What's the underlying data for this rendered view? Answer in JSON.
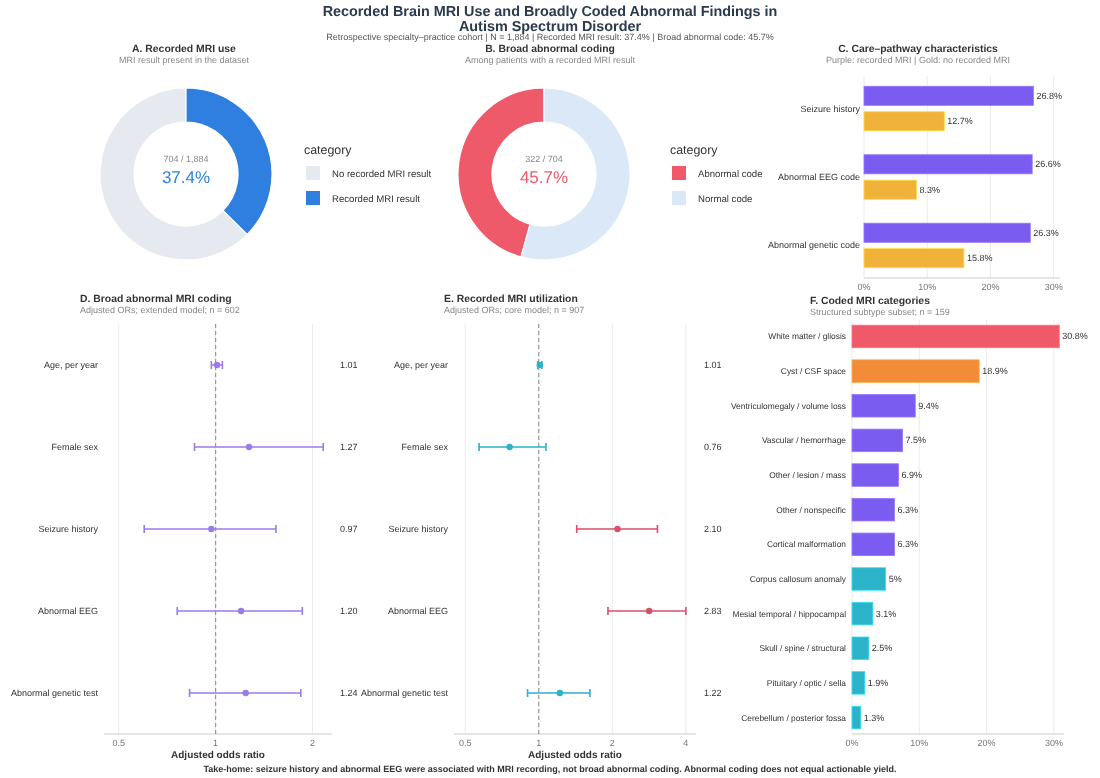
{
  "chart_data": [
    {
      "type": "other",
      "title": "Recorded Brain MRI Use and Broadly Coded Abnormal Findings in Autism Spectrum Disorder",
      "subtitle": "Retrospective specialty–practice cohort | N = 1,884 | Recorded MRI result: 37.4% | Broad abnormal code: 45.7%",
      "annotations": [
        "Take-home: seizure history and abnormal EEG were associated with MRI recording, not broad abnormal coding. Abnormal coding does not equal actionable yield."
      ]
    },
    {
      "type": "donut",
      "title": "A. Recorded MRI use",
      "subtitle": "MRI result present in the dataset",
      "categories": [
        "No recorded MRI result",
        "Recorded MRI result"
      ],
      "values": [
        62.6,
        37.4
      ],
      "colors": [
        "#e6e9f0",
        "#2f7fe0"
      ],
      "legend": "right",
      "legend_title": "category",
      "annotations": [
        "704 / 1,884",
        "37.4%"
      ]
    },
    {
      "type": "donut",
      "title": "B. Broad abnormal coding",
      "subtitle": "Among patients with a recorded MRI result",
      "categories": [
        "Abnormal code",
        "Normal code"
      ],
      "values": [
        45.7,
        54.3
      ],
      "colors": [
        "#ef5a6a",
        "#dbe8f7"
      ],
      "legend": "right",
      "legend_title": "category",
      "annotations": [
        "322 / 704",
        "45.7%"
      ]
    },
    {
      "type": "bar",
      "orientation": "horizontal",
      "title": "C. Care–pathway characteristics",
      "subtitle": "Purple: recorded MRI | Gold: no recorded MRI",
      "categories": [
        "Seizure history",
        "Abnormal EEG code",
        "Abnormal genetic code"
      ],
      "series": [
        {
          "color": "#7b5cf0",
          "values": [
            26.8,
            26.6,
            26.3
          ],
          "value_labels": [
            "26.8%",
            "26.6%",
            "26.3%"
          ]
        },
        {
          "color": "#f0b23a",
          "values": [
            12.7,
            8.3,
            15.8
          ],
          "value_labels": [
            "12.7%",
            "8.3%",
            "15.8%"
          ]
        }
      ],
      "xlim": [
        0,
        31
      ],
      "xticks": [
        {
          "value": 0,
          "label": "0%"
        },
        {
          "value": 10,
          "label": "10%"
        },
        {
          "value": 20,
          "label": "20%"
        },
        {
          "value": 30,
          "label": "30%"
        }
      ],
      "grid": "x"
    },
    {
      "type": "scatter",
      "orientation": "horizontal",
      "title": "D. Broad abnormal MRI coding",
      "subtitle": "Adjusted ORs; extended model; n = 602",
      "xlabel": "Adjusted odds ratio",
      "categories": [
        "Age, per year",
        "Female sex",
        "Seizure history",
        "Abnormal EEG",
        "Abnormal genetic test"
      ],
      "values": [
        1.01,
        1.27,
        0.97,
        1.2,
        1.24
      ],
      "errors": [
        [
          0.97,
          1.05
        ],
        [
          0.86,
          2.16
        ],
        [
          0.6,
          1.54
        ],
        [
          0.76,
          1.86
        ],
        [
          0.83,
          1.84
        ]
      ],
      "color": "#9b7be8",
      "value_labels": [
        "1.01",
        "1.27",
        "0.97",
        "1.20",
        "1.24"
      ],
      "log": "x",
      "xlim": [
        0.45,
        2.3
      ],
      "xticks": [
        0.5,
        1,
        2
      ],
      "ref_lines": [
        {
          "axis": "x",
          "value": 1,
          "line_style": "dashed",
          "color": "#999999"
        }
      ],
      "grid": "x",
      "marker": "circle"
    },
    {
      "type": "scatter",
      "orientation": "horizontal",
      "title": "E. Recorded MRI utilization",
      "subtitle": "Adjusted ORs; core model; n = 907",
      "xlabel": "Adjusted odds ratio",
      "categories": [
        "Age, per year",
        "Female sex",
        "Seizure history",
        "Abnormal EEG",
        "Abnormal genetic test"
      ],
      "values": [
        1.01,
        0.76,
        2.1,
        2.83,
        1.22
      ],
      "errors": [
        [
          0.99,
          1.03
        ],
        [
          0.57,
          1.07
        ],
        [
          1.43,
          3.06
        ],
        [
          1.92,
          4.0
        ],
        [
          0.9,
          1.62
        ]
      ],
      "colors": [
        "#2bb3c9",
        "#2bb3c9",
        "#d9506a",
        "#d9506a",
        "#2bb3c9"
      ],
      "value_labels": [
        "1.01",
        "0.76",
        "2.10",
        "2.83",
        "1.22"
      ],
      "log": "x",
      "xlim": [
        0.45,
        4.4
      ],
      "xticks": [
        0.5,
        1,
        2,
        4
      ],
      "ref_lines": [
        {
          "axis": "x",
          "value": 1,
          "line_style": "dashed",
          "color": "#999999"
        }
      ],
      "grid": "x",
      "marker": "circle"
    },
    {
      "type": "bar",
      "orientation": "horizontal",
      "title": "F. Coded MRI categories",
      "subtitle": "Structured subtype subset; n = 159",
      "categories": [
        "White matter / gliosis",
        "Cyst / CSF space",
        "Ventriculomegaly / volume loss",
        "Vascular / hemorrhage",
        "Other / lesion / mass",
        "Other / nonspecific",
        "Cortical malformation",
        "Corpus callosum anomaly",
        "Mesial temporal / hippocampal",
        "Skull / spine / structural",
        "Pituitary / optic / sella",
        "Cerebellum / posterior fossa"
      ],
      "values": [
        30.8,
        18.9,
        9.4,
        7.5,
        6.9,
        6.3,
        6.3,
        5.0,
        3.1,
        2.5,
        1.9,
        1.3
      ],
      "colors": [
        "#ef5a6a",
        "#f28c38",
        "#7b5cf0",
        "#7b5cf0",
        "#7b5cf0",
        "#7b5cf0",
        "#7b5cf0",
        "#2bb3c9",
        "#2bb3c9",
        "#2bb3c9",
        "#2bb3c9",
        "#2bb3c9"
      ],
      "value_labels": [
        "30.8%",
        "18.9%",
        "9.4%",
        "7.5%",
        "6.9%",
        "6.3%",
        "6.3%",
        "5%",
        "3.1%",
        "2.5%",
        "1.9%",
        "1.3%"
      ],
      "xlim": [
        0,
        31.5
      ],
      "xticks": [
        {
          "value": 0,
          "label": "0%"
        },
        {
          "value": 10,
          "label": "10%"
        },
        {
          "value": 20,
          "label": "20%"
        },
        {
          "value": 30,
          "label": "30%"
        }
      ],
      "grid": "x"
    }
  ]
}
